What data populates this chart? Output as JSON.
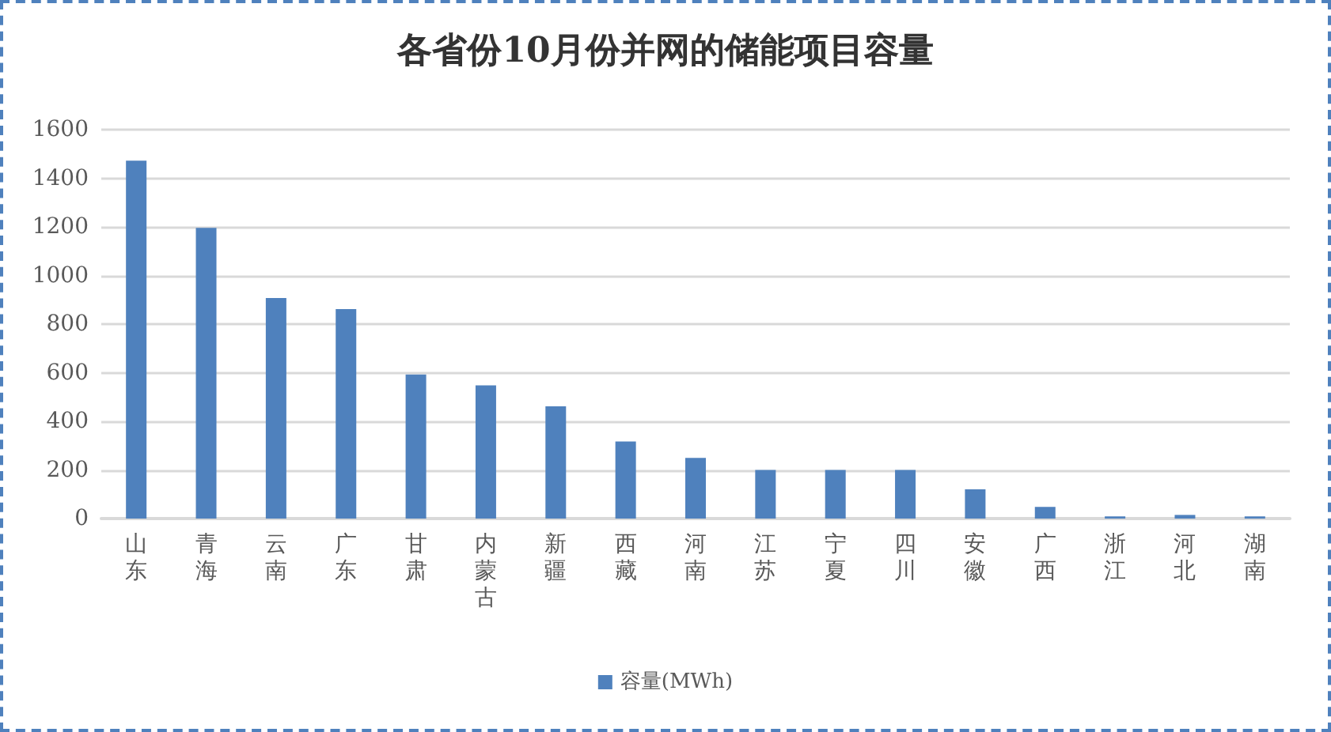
{
  "chart_data": {
    "type": "bar",
    "title": "各省份10月份并网的储能项目容量",
    "categories": [
      "山东",
      "青海",
      "云南",
      "广东",
      "甘肃",
      "内蒙古",
      "新疆",
      "西藏",
      "河南",
      "江苏",
      "宁夏",
      "四川",
      "安徽",
      "广西",
      "浙江",
      "河北",
      "湖南"
    ],
    "series": [
      {
        "name": "容量(MWh)",
        "color": "#4f81bd",
        "values": [
          1472,
          1196,
          907,
          862,
          593,
          548,
          462,
          317,
          250,
          200,
          200,
          200,
          120,
          48,
          9,
          15,
          9
        ]
      }
    ],
    "ylim": [
      0,
      1600
    ],
    "yticks": [
      0,
      200,
      400,
      600,
      800,
      1000,
      1200,
      1400,
      1600
    ],
    "grid": "y",
    "legend": "bottom"
  }
}
